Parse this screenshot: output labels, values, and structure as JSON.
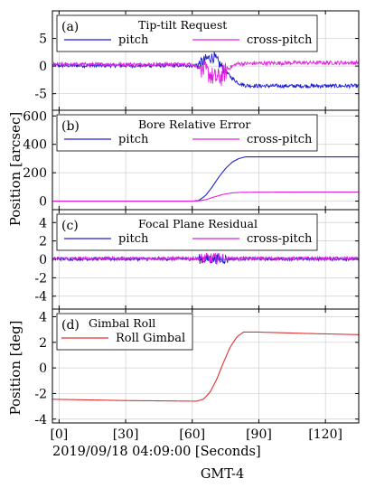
{
  "figure": {
    "xaxis_labels": [
      "[0]",
      "[30]",
      "[60]",
      "[90]",
      "[120]"
    ],
    "xlabel": "2019/09/18 04:09:00 [Seconds]",
    "timezone": "GMT-4",
    "left_labels": [
      "Position [arcsec]",
      "Position [deg]"
    ]
  },
  "chart_data": [
    {
      "type": "line",
      "panel": "(a)",
      "title": "Tip-tilt Request",
      "ylim": [
        -8,
        10
      ],
      "yticks": [
        -5,
        0,
        5
      ],
      "xlim": [
        -3,
        135
      ],
      "grid": true,
      "legend_position": "top-left",
      "series": [
        {
          "name": "pitch",
          "color": "#1f1fd6",
          "points": [
            [
              -3,
              0.1
            ],
            [
              62,
              0.1
            ],
            [
              64,
              0.6
            ],
            [
              66,
              1.2
            ],
            [
              68,
              1.5
            ],
            [
              70,
              1.6
            ],
            [
              71,
              1.0
            ],
            [
              73,
              0.0
            ],
            [
              75,
              -1.0
            ],
            [
              78,
              -2.2
            ],
            [
              81,
              -3.1
            ],
            [
              84,
              -3.5
            ],
            [
              90,
              -3.6
            ],
            [
              100,
              -3.6
            ],
            [
              110,
              -3.6
            ],
            [
              120,
              -3.6
            ],
            [
              135,
              -3.6
            ]
          ],
          "noise": 0.35,
          "spike_range": [
            62,
            75
          ],
          "spike_amp": 1.0
        },
        {
          "name": "cross-pitch",
          "color": "#e020e0",
          "points": [
            [
              -3,
              0.3
            ],
            [
              60,
              0.3
            ],
            [
              64,
              -0.4
            ],
            [
              67,
              -1.2
            ],
            [
              70,
              -2.2
            ],
            [
              73,
              -2.0
            ],
            [
              76,
              -0.5
            ],
            [
              80,
              0.4
            ],
            [
              90,
              0.5
            ],
            [
              110,
              0.6
            ],
            [
              135,
              0.6
            ]
          ],
          "noise": 0.35,
          "spike_range": [
            64,
            76
          ],
          "spike_amp": 1.8
        }
      ]
    },
    {
      "type": "line",
      "panel": "(b)",
      "title": "Bore Relative Error",
      "ylim": [
        -60,
        640
      ],
      "yticks": [
        0,
        200,
        400,
        600
      ],
      "xlim": [
        -3,
        135
      ],
      "grid": true,
      "legend_position": "top-left",
      "series": [
        {
          "name": "pitch",
          "color": "#1f1fd6",
          "points": [
            [
              -3,
              0
            ],
            [
              60,
              0
            ],
            [
              63,
              5
            ],
            [
              66,
              40
            ],
            [
              69,
              100
            ],
            [
              72,
              170
            ],
            [
              75,
              230
            ],
            [
              78,
              275
            ],
            [
              81,
              300
            ],
            [
              84,
              312
            ],
            [
              90,
              312
            ],
            [
              110,
              312
            ],
            [
              135,
              312
            ]
          ],
          "noise": 0
        },
        {
          "name": "cross-pitch",
          "color": "#e020e0",
          "points": [
            [
              -3,
              0
            ],
            [
              62,
              0
            ],
            [
              66,
              10
            ],
            [
              70,
              30
            ],
            [
              74,
              48
            ],
            [
              78,
              58
            ],
            [
              82,
              62
            ],
            [
              90,
              63
            ],
            [
              110,
              64
            ],
            [
              135,
              64
            ]
          ],
          "noise": 0
        }
      ]
    },
    {
      "type": "line",
      "panel": "(c)",
      "title": "Focal Plane Residual",
      "ylim": [
        -5.4,
        5.4
      ],
      "yticks": [
        -4,
        -2,
        0,
        2,
        4
      ],
      "xlim": [
        -3,
        135
      ],
      "grid": true,
      "legend_position": "top-left",
      "series": [
        {
          "name": "pitch",
          "color": "#1f1fd6",
          "points": [
            [
              -3,
              0.05
            ],
            [
              135,
              0.05
            ]
          ],
          "noise": 0.18,
          "spike_range": [
            63,
            76
          ],
          "spike_amp": 0.55
        },
        {
          "name": "cross-pitch",
          "color": "#e020e0",
          "points": [
            [
              -3,
              0.1
            ],
            [
              135,
              0.1
            ]
          ],
          "noise": 0.18,
          "spike_range": [
            64,
            74
          ],
          "spike_amp": 0.6
        }
      ]
    },
    {
      "type": "line",
      "panel": "(d)",
      "title": "Gimbal Roll",
      "ylim": [
        -4.3,
        4.6
      ],
      "yticks": [
        -4,
        -2,
        0,
        2,
        4
      ],
      "xlim": [
        -3,
        135
      ],
      "grid": true,
      "legend_position": "top-left",
      "series": [
        {
          "name": "Roll Gimbal",
          "color": "#e03030",
          "points": [
            [
              -3,
              -2.45
            ],
            [
              30,
              -2.55
            ],
            [
              62,
              -2.6
            ],
            [
              65,
              -2.45
            ],
            [
              68,
              -1.9
            ],
            [
              71,
              -0.9
            ],
            [
              74,
              0.4
            ],
            [
              77,
              1.6
            ],
            [
              80,
              2.4
            ],
            [
              83,
              2.8
            ],
            [
              90,
              2.8
            ],
            [
              110,
              2.7
            ],
            [
              135,
              2.6
            ]
          ],
          "noise": 0
        }
      ]
    }
  ]
}
